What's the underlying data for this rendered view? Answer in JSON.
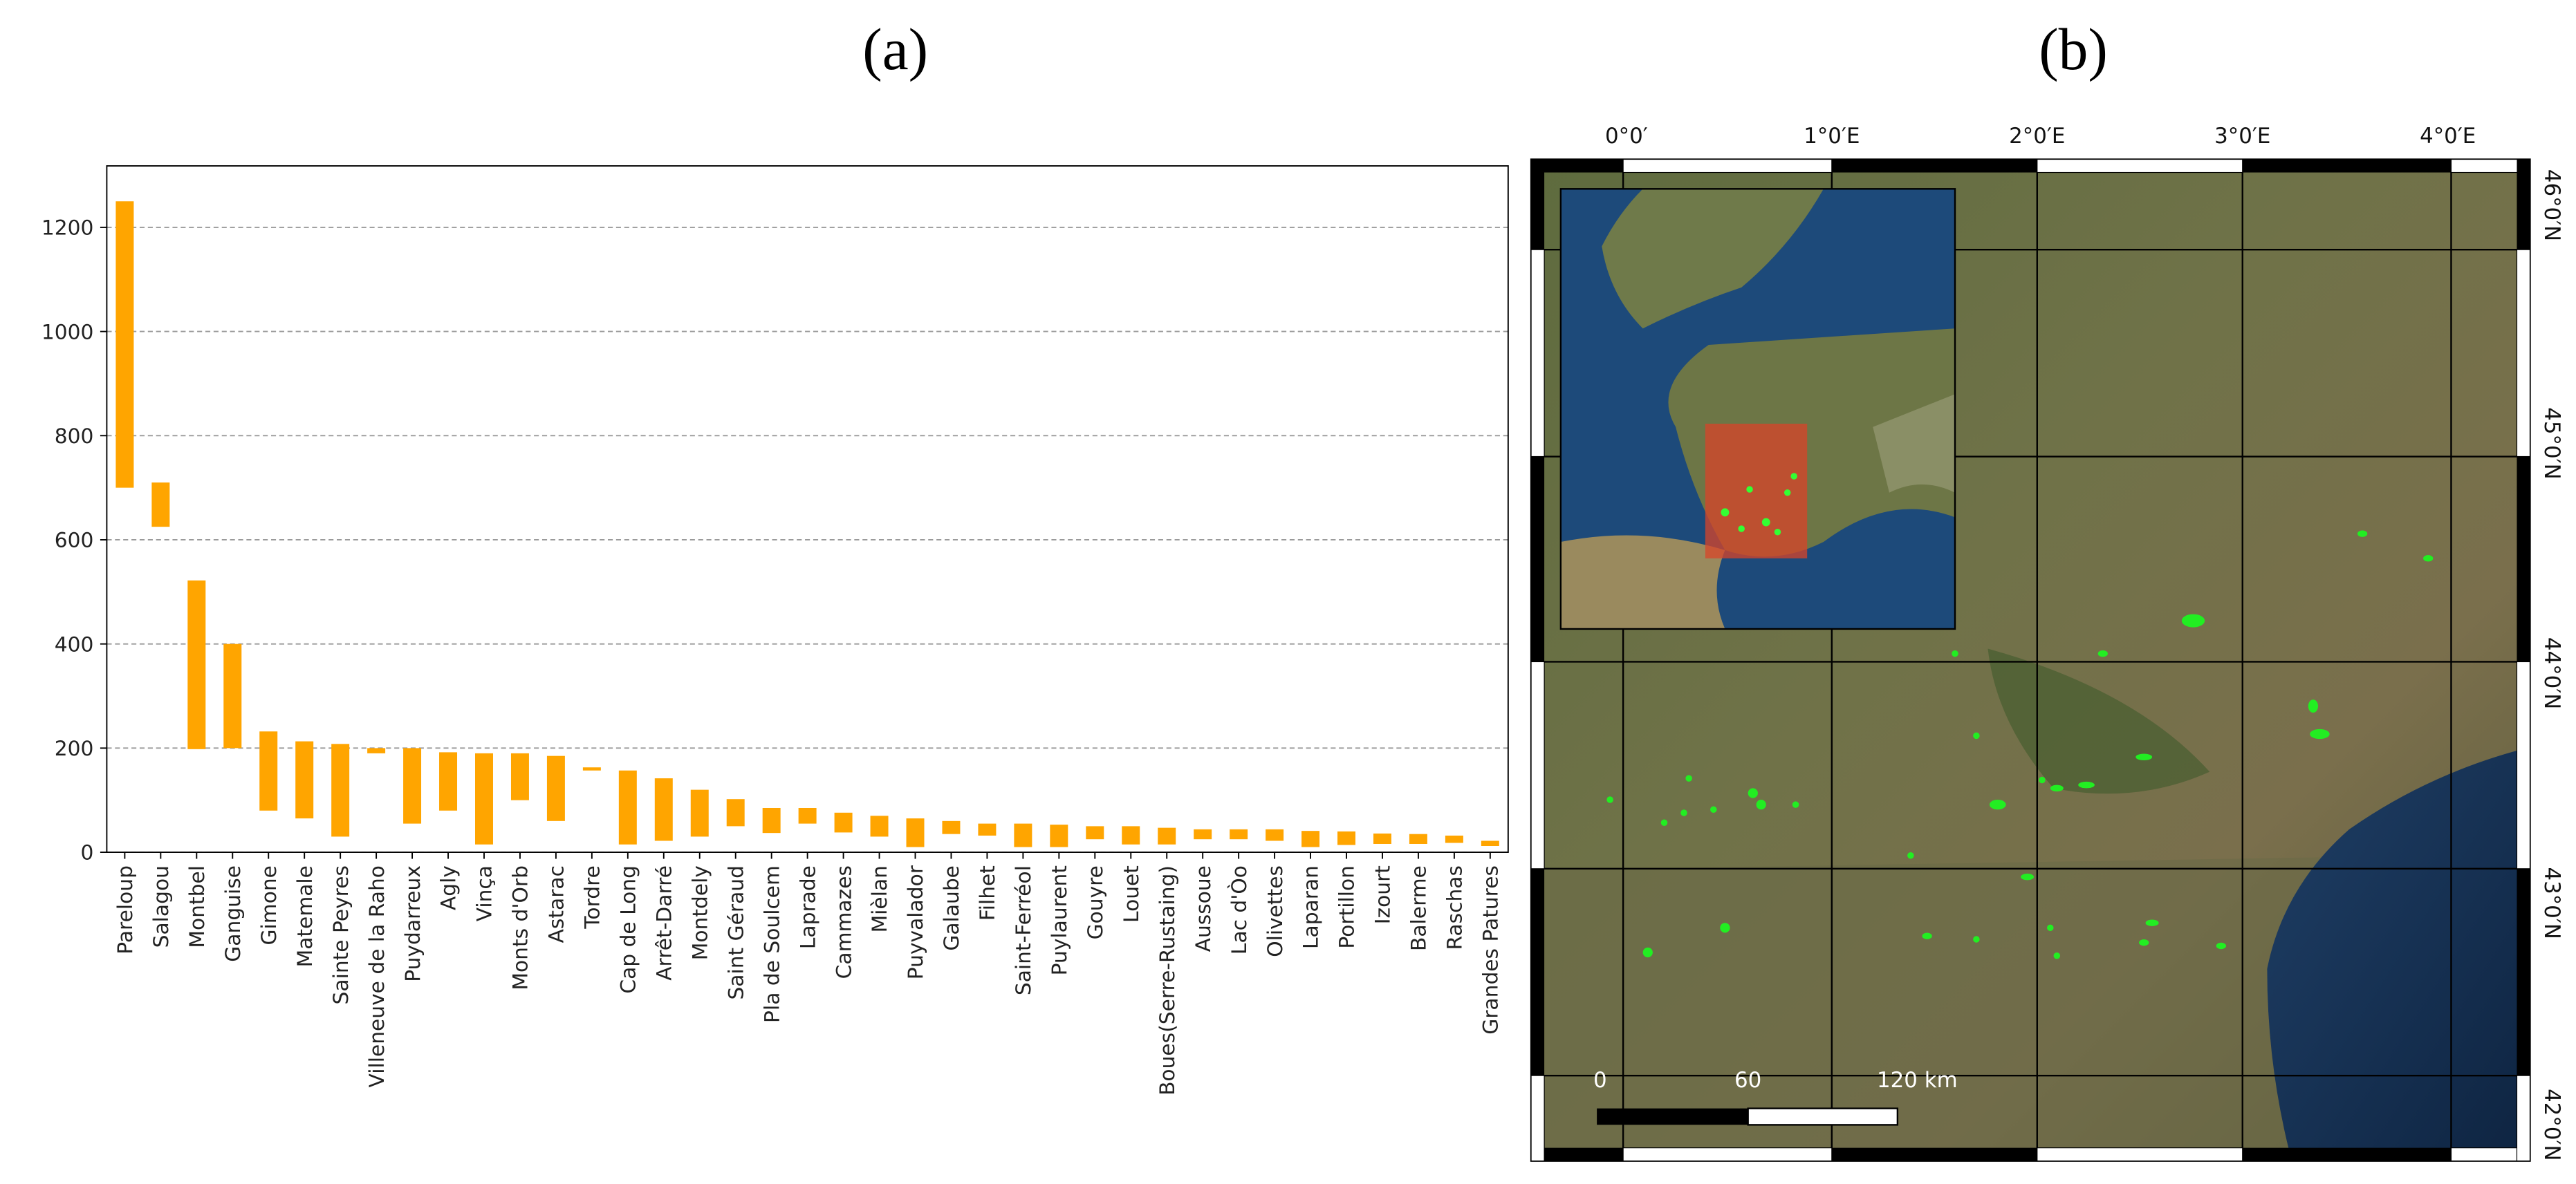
{
  "panels": {
    "a": "(a)",
    "b": "(b)"
  },
  "chart_data": {
    "type": "floating_bar",
    "color": "#ffa500",
    "categories": [
      "Pareloup",
      "Salagou",
      "Montbel",
      "Ganguise",
      "Gimone",
      "Matemale",
      "Sainte Peyres",
      "Villeneuve de la Raho",
      "Puydarreux",
      "Agly",
      "Vinça",
      "Monts d'Orb",
      "Astarac",
      "Tordre",
      "Cap de Long",
      "Arrêt-Darré",
      "Montdely",
      "Saint Géraud",
      "Pla de Soulcem",
      "Laprade",
      "Cammazes",
      "Mièlan",
      "Puyvalador",
      "Galaube",
      "Filhet",
      "Saint-Ferréol",
      "Puylaurent",
      "Gouyre",
      "Louet",
      "Boues(Serre-Rustaing)",
      "Aussoue",
      "Lac d'Òo",
      "Olivettes",
      "Laparan",
      "Portillon",
      "Izourt",
      "Balerme",
      "Raschas",
      "Grandes Patures"
    ],
    "low": [
      700,
      625,
      198,
      200,
      80,
      65,
      30,
      190,
      55,
      80,
      15,
      100,
      60,
      157,
      15,
      22,
      30,
      50,
      37,
      55,
      38,
      30,
      10,
      35,
      32,
      10,
      10,
      25,
      15,
      15,
      25,
      25,
      22,
      10,
      14,
      16,
      16,
      18,
      12
    ],
    "high": [
      1250,
      710,
      522,
      400,
      232,
      213,
      208,
      200,
      200,
      192,
      190,
      190,
      185,
      163,
      157,
      142,
      120,
      102,
      85,
      85,
      76,
      70,
      65,
      60,
      55,
      55,
      53,
      50,
      50,
      47,
      44,
      44,
      44,
      41,
      40,
      36,
      35,
      32,
      22
    ],
    "ylim": [
      0,
      1318
    ],
    "yticks": [
      0,
      200,
      400,
      600,
      800,
      1000,
      1200
    ],
    "grid": true
  },
  "map": {
    "lon_labels": [
      "0°0′",
      "1°0′E",
      "2°0′E",
      "3°0′E",
      "4°0′E"
    ],
    "lat_labels": [
      "46°0′N",
      "45°0′N",
      "44°0′N",
      "43°0′N",
      "42°0′N"
    ],
    "scale_labels": [
      "0",
      "60",
      "120 km"
    ]
  }
}
